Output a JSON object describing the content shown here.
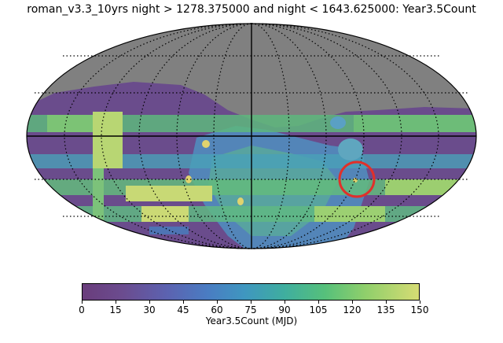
{
  "title": "roman_v3.3_10yrs night > 1278.375000 and night < 1643.625000: Year3.5Count",
  "colorbar": {
    "label": "Year3.5Count (MJD)",
    "ticks": [
      "0",
      "15",
      "30",
      "45",
      "60",
      "75",
      "90",
      "105",
      "120",
      "135",
      "150"
    ],
    "range": [
      0,
      150
    ],
    "colors": [
      "#6a3d7c",
      "#5c62b0",
      "#3f96c0",
      "#56c07b",
      "#d6dc74"
    ]
  },
  "map": {
    "projection": "mollweide",
    "background_color": "#808080",
    "graticule": "dotted",
    "annotation": "red circle"
  }
}
